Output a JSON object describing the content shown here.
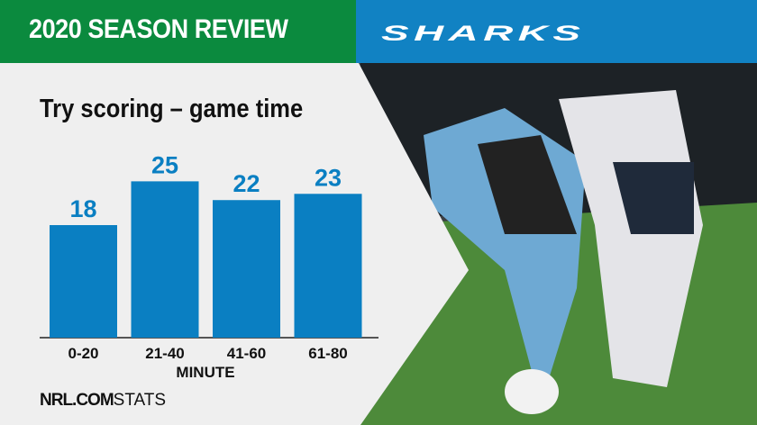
{
  "header": {
    "title": "2020 SEASON REVIEW",
    "logo_text": "SHARKS"
  },
  "colors": {
    "green": "#0b8a3e",
    "blue": "#1182c3",
    "bar": "#0a7fc2"
  },
  "chart_data": {
    "type": "bar",
    "title": "Try scoring – game time",
    "categories": [
      "0-20",
      "21-40",
      "41-60",
      "61-80"
    ],
    "values": [
      18,
      25,
      22,
      23
    ],
    "xlabel": "MINUTE",
    "ylabel": "",
    "ylim": [
      0,
      30
    ],
    "grid": false
  },
  "footer": {
    "brand": "NRL.COM",
    "suffix": "STATS"
  }
}
